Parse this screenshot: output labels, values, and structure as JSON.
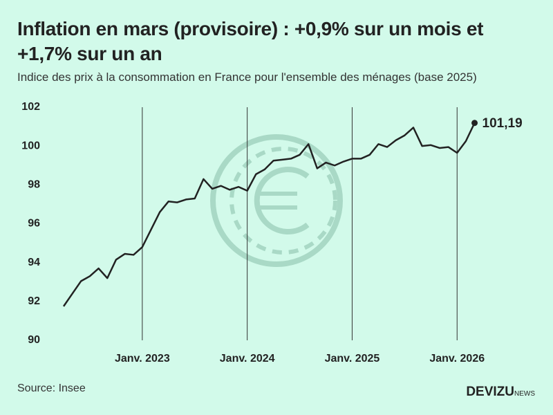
{
  "chart_data": {
    "type": "line",
    "title": "Inflation en mars (provisoire) : +0,9% sur un mois et +1,7% sur un an",
    "subtitle": "Indice des prix à la consommation en France pour l'ensemble des ménages (base 2025)",
    "source": "Source: Insee",
    "brand": "DEVIZU",
    "brand_suffix": "NEWS",
    "categories": [
      null,
      null,
      null,
      null,
      null,
      null,
      null,
      null,
      null,
      "Janv. 2023",
      null,
      null,
      null,
      null,
      null,
      null,
      null,
      null,
      null,
      null,
      null,
      "Janv. 2024",
      null,
      null,
      null,
      null,
      null,
      null,
      null,
      null,
      null,
      null,
      null,
      "Janv. 2025",
      null,
      null,
      null,
      null,
      null,
      null,
      null,
      null,
      null,
      null,
      null,
      "Janv. 2026",
      null,
      null
    ],
    "series": [
      {
        "color": "#222222",
        "values": [
          91.75,
          92.4,
          93.05,
          93.3,
          93.7,
          93.2,
          94.15,
          94.45,
          94.4,
          94.8,
          95.7,
          96.6,
          97.15,
          97.1,
          97.25,
          97.3,
          98.3,
          97.8,
          97.95,
          97.75,
          97.9,
          97.7,
          98.55,
          98.8,
          99.25,
          99.3,
          99.35,
          99.55,
          100.1,
          98.85,
          99.15,
          99.0,
          99.2,
          99.35,
          99.35,
          99.55,
          100.1,
          99.95,
          100.3,
          100.55,
          100.95,
          100.0,
          100.05,
          99.9,
          99.95,
          99.65,
          100.25,
          101.19
        ],
        "value_labels": [
          null,
          null,
          null,
          null,
          null,
          null,
          null,
          null,
          null,
          null,
          null,
          null,
          null,
          null,
          null,
          null,
          null,
          null,
          null,
          null,
          null,
          null,
          null,
          null,
          null,
          null,
          null,
          null,
          null,
          null,
          null,
          null,
          null,
          null,
          null,
          null,
          null,
          null,
          null,
          null,
          null,
          null,
          null,
          null,
          null,
          null,
          null,
          "101,19"
        ]
      }
    ],
    "ylim": [
      90,
      102
    ],
    "yticks": [
      90,
      92,
      94,
      96,
      98,
      100,
      102
    ],
    "grid": false
  }
}
